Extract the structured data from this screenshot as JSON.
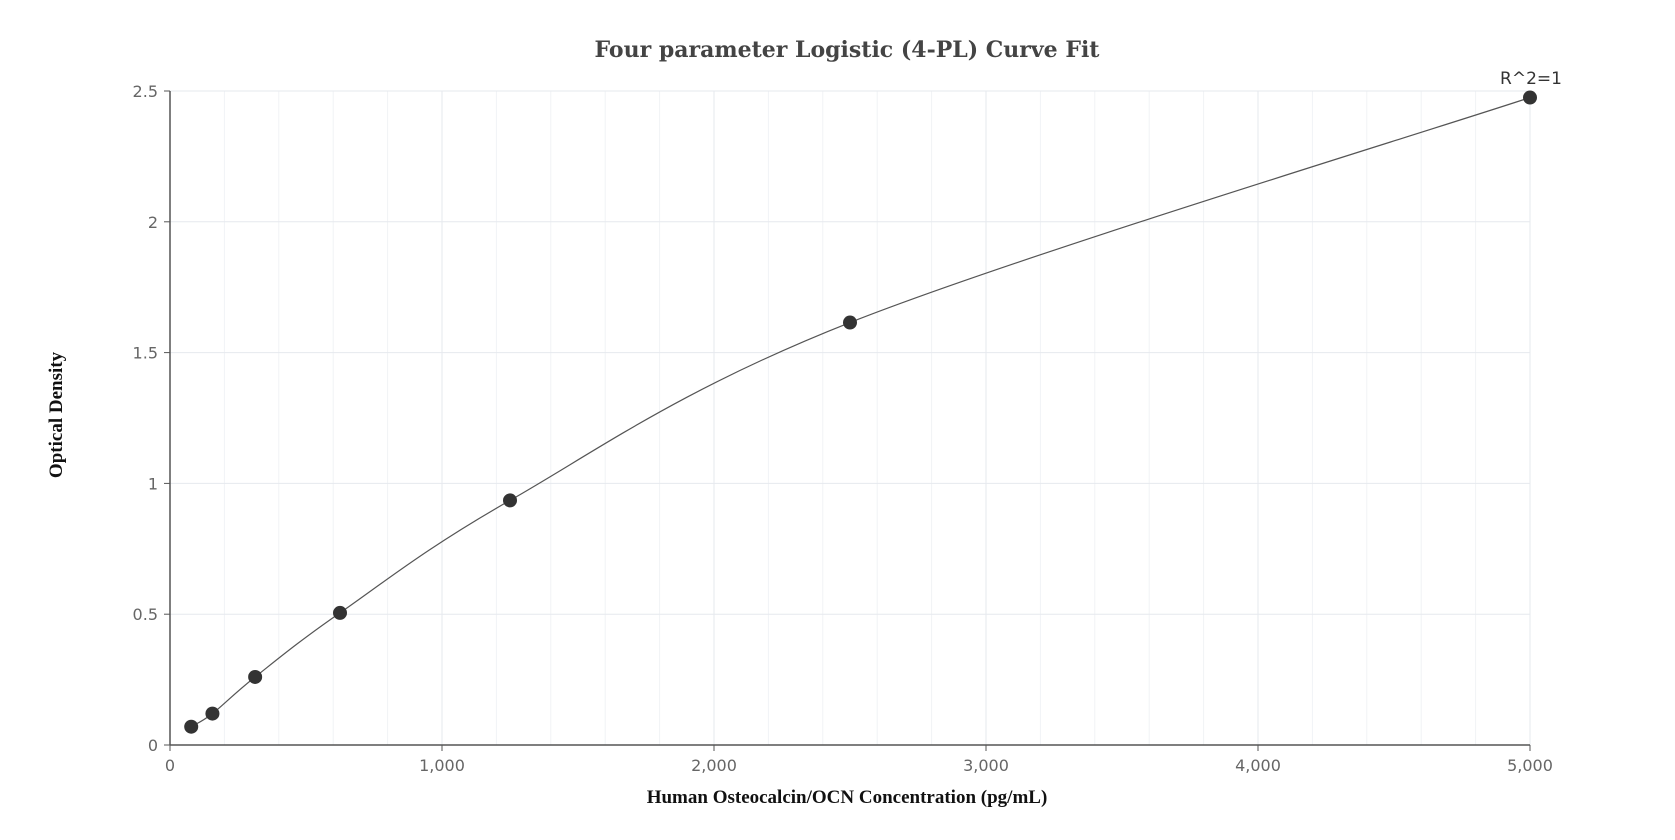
{
  "chart_data": {
    "type": "scatter",
    "title": "Four parameter Logistic (4-PL) Curve Fit",
    "xlabel": "Human Osteocalcin/OCN Concentration (pg/mL)",
    "ylabel": "Optical Density",
    "xlim": [
      0,
      5000
    ],
    "ylim": [
      0,
      2.5
    ],
    "x_ticks": [
      0,
      1000,
      2000,
      3000,
      4000,
      5000
    ],
    "x_tick_labels": [
      "0",
      "1,000",
      "2,000",
      "3,000",
      "4,000",
      "5,000"
    ],
    "y_ticks": [
      0,
      0.5,
      1,
      1.5,
      2,
      2.5
    ],
    "y_tick_labels": [
      "0",
      "0.5",
      "1",
      "1.5",
      "2",
      "2.5"
    ],
    "grid": true,
    "series": [
      {
        "points": [
          {
            "x": 78,
            "y": 0.07
          },
          {
            "x": 156,
            "y": 0.12
          },
          {
            "x": 313,
            "y": 0.26
          },
          {
            "x": 625,
            "y": 0.505
          },
          {
            "x": 1250,
            "y": 0.935
          },
          {
            "x": 2500,
            "y": 1.615
          },
          {
            "x": 5000,
            "y": 2.475
          }
        ]
      }
    ],
    "annotation": "R^2=1",
    "colors": {
      "point": "#333333",
      "curve": "#555555",
      "grid": "#e6e9ee",
      "axis": "#555555"
    }
  }
}
